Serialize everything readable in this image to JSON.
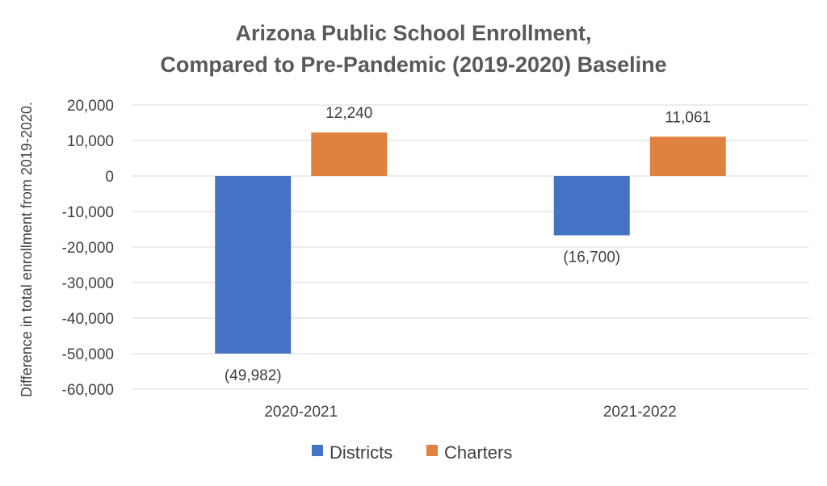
{
  "chart_data": {
    "type": "bar",
    "title": [
      "Arizona Public School Enrollment,",
      "Compared to Pre-Pandemic (2019-2020) Baseline"
    ],
    "xlabel": "",
    "ylabel": "Difference in total enrollment from 2019-2020.",
    "categories": [
      "2020-2021",
      "2021-2022"
    ],
    "series": [
      {
        "name": "Districts",
        "color": "#4472c4",
        "values": [
          -49982,
          -16700
        ],
        "labels": [
          "(49,982)",
          "(16,700)"
        ]
      },
      {
        "name": "Charters",
        "color": "#e0823f",
        "values": [
          12240,
          11061
        ],
        "labels": [
          "12,240",
          "11,061"
        ]
      }
    ],
    "ylim": [
      -60000,
      20000
    ],
    "yticks": [
      20000,
      10000,
      0,
      -10000,
      -20000,
      -30000,
      -40000,
      -50000,
      -60000
    ],
    "ytick_labels": [
      "20,000",
      "10,000",
      "0",
      "-10,000",
      "-20,000",
      "-30,000",
      "-40,000",
      "-50,000",
      "-60,000"
    ],
    "grid": true,
    "gridline_color": "#d9d9d9",
    "legend_position": "bottom"
  }
}
